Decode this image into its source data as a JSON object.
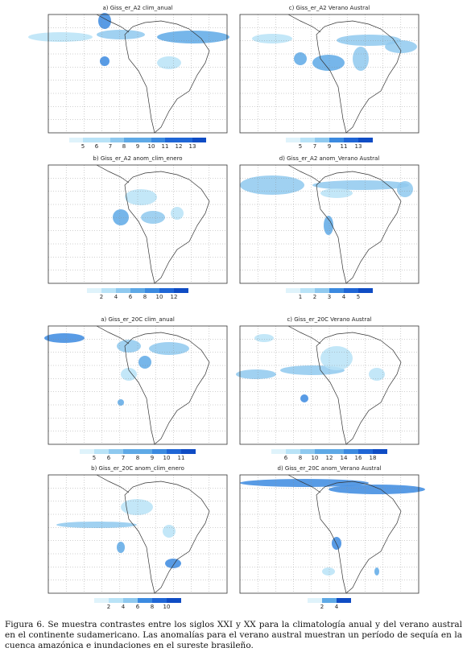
{
  "panels": [
    {
      "title": "a) Giss_er_A2 clim_anual",
      "colorbar_labels": [
        5,
        6,
        7,
        8,
        9,
        10,
        11,
        12,
        13
      ]
    },
    {
      "title": "c) Giss_er_A2 Verano Austral",
      "colorbar_labels": [
        5,
        7,
        9,
        11,
        13
      ]
    },
    {
      "title": "b) Giss_er_A2 anom_clim_enero",
      "colorbar_labels": [
        2,
        4,
        6,
        8,
        10,
        12
      ]
    },
    {
      "title": "d) Giss_er_A2 anom_Verano Austral",
      "colorbar_labels": [
        1,
        2,
        3,
        4,
        5
      ]
    },
    {
      "title": "a) Giss_er_20C clim_anual",
      "colorbar_labels": [
        5,
        6,
        7,
        8,
        9,
        10,
        11
      ]
    },
    {
      "title": "c) Giss_er_20C Verano Austral",
      "colorbar_labels": [
        6,
        8,
        10,
        12,
        14,
        16,
        18
      ]
    },
    {
      "title": "b) Giss_er_20C anom_clim_enero",
      "colorbar_labels": [
        2,
        4,
        6,
        8,
        10
      ]
    },
    {
      "title": "d) Giss_er_20C anom_Verano Austral",
      "colorbar_labels": [
        2,
        4
      ]
    }
  ],
  "caption": "Figura 6. Se muestra contrastes entre los siglos XXI y XX para la climatología anual y del verano austral en el continente sudamericano. Las anomalías para el verano austral muestran un período de sequía en la cuenca amazónica e inundaciones en el sureste brasileño."
}
